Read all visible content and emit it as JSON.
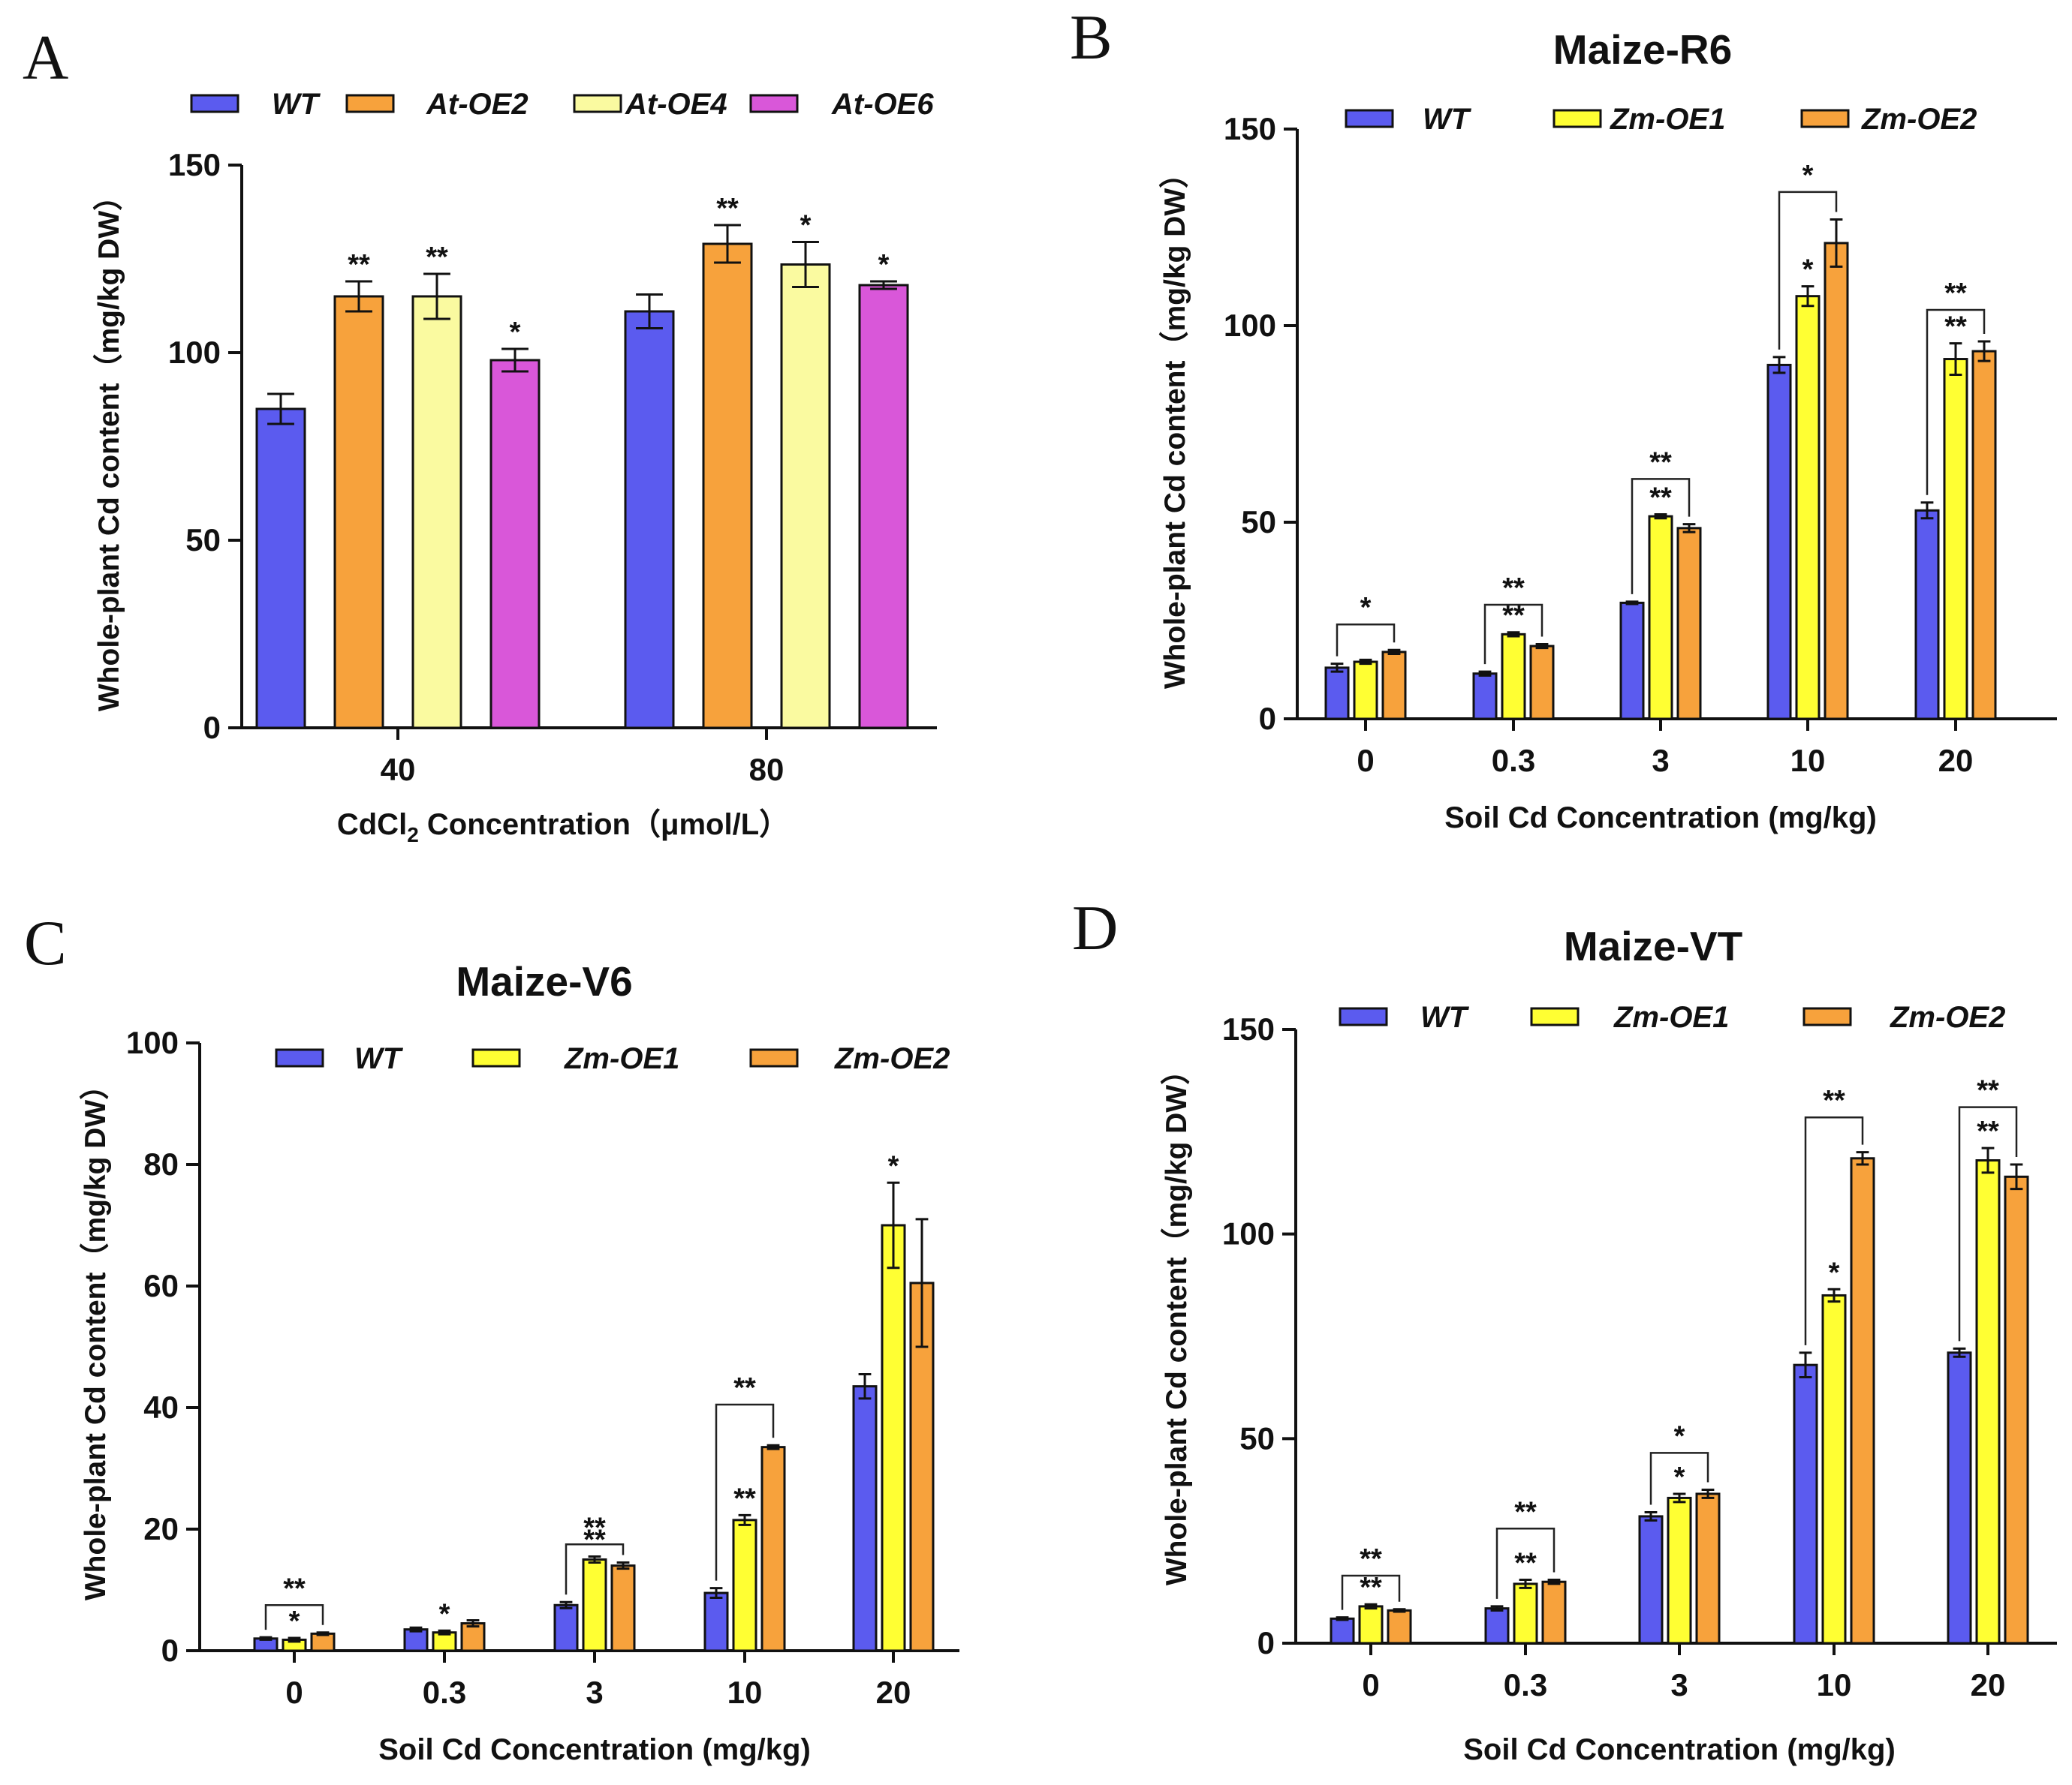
{
  "chart_data": [
    {
      "id": "A",
      "type": "bar",
      "panel_label": "A",
      "title": "",
      "xlabel_parts": [
        "CdCl",
        "2",
        " Concentration（μmol/L）"
      ],
      "ylabel": "Whole-plant Cd content（mg/kg DW）",
      "ylim": [
        0,
        150
      ],
      "yticks": [
        0,
        50,
        100,
        150
      ],
      "ytick_labels": [
        "0",
        "50",
        "100",
        "150"
      ],
      "categories": [
        "40",
        "80"
      ],
      "series": [
        {
          "name": "WT",
          "color": "#5b5bef",
          "values": [
            85,
            111
          ],
          "errors": [
            4,
            4.5
          ],
          "sig": [
            "",
            ""
          ]
        },
        {
          "name": "At-OE2",
          "color": "#f7a23c",
          "values": [
            115,
            129
          ],
          "errors": [
            4,
            5
          ],
          "sig": [
            "**",
            "**"
          ]
        },
        {
          "name": "At-OE4",
          "color": "#fafaa0",
          "values": [
            115,
            123.5
          ],
          "errors": [
            6,
            6
          ],
          "sig": [
            "**",
            "*"
          ]
        },
        {
          "name": "At-OE6",
          "color": "#d957d9",
          "values": [
            98,
            118
          ],
          "errors": [
            3,
            1
          ],
          "sig": [
            "*",
            "*"
          ]
        }
      ],
      "brackets": []
    },
    {
      "id": "B",
      "type": "bar",
      "panel_label": "B",
      "title": "Maize-R6",
      "xlabel_parts": [
        "Soil Cd Concentration (mg/kg)"
      ],
      "ylabel": "Whole-plant Cd content（mg/kg DW）",
      "ylim": [
        0,
        150
      ],
      "yticks": [
        0,
        50,
        100,
        150
      ],
      "ytick_labels": [
        "0",
        "50",
        "100",
        "150"
      ],
      "categories": [
        "0",
        "0.3",
        "3",
        "10",
        "20"
      ],
      "series": [
        {
          "name": "WT",
          "color": "#5b5bef",
          "values": [
            13,
            11.5,
            29.5,
            90,
            53
          ],
          "errors": [
            1,
            0.5,
            0.3,
            2,
            2
          ],
          "sig": [
            "",
            "",
            "",
            "",
            ""
          ]
        },
        {
          "name": "Zm-OE1",
          "color": "#ffff33",
          "values": [
            14.5,
            21.5,
            51.5,
            107.5,
            91.5
          ],
          "errors": [
            0.5,
            0.5,
            0.5,
            2.5,
            4
          ],
          "sig": [
            "",
            "**",
            "**",
            "*",
            "**"
          ]
        },
        {
          "name": "Zm-OE2",
          "color": "#f7a23c",
          "values": [
            17,
            18.5,
            48.5,
            121,
            93.5
          ],
          "errors": [
            0.5,
            0.5,
            1,
            6,
            2.5
          ],
          "sig": [
            "",
            "",
            "",
            "",
            ""
          ]
        }
      ],
      "brackets": [
        {
          "cat": 0,
          "y": 24,
          "label": "*"
        },
        {
          "cat": 1,
          "y": 29,
          "label": "**"
        },
        {
          "cat": 2,
          "y": 61,
          "label": "**"
        },
        {
          "cat": 3,
          "y": 134,
          "label": "*"
        },
        {
          "cat": 4,
          "y": 104,
          "label": "**"
        }
      ]
    },
    {
      "id": "C",
      "type": "bar",
      "panel_label": "C",
      "title": "Maize-V6",
      "xlabel_parts": [
        "Soil Cd Concentration (mg/kg)"
      ],
      "ylabel": "Whole-plant Cd content（mg/kg DW）",
      "ylim": [
        0,
        100
      ],
      "yticks": [
        0,
        20,
        40,
        60,
        80,
        100
      ],
      "ytick_labels": [
        "0",
        "20",
        "40",
        "60",
        "80",
        "100"
      ],
      "categories": [
        "0",
        "0.3",
        "3",
        "10",
        "20"
      ],
      "series": [
        {
          "name": "WT",
          "color": "#5b5bef",
          "values": [
            2,
            3.5,
            7.5,
            9.5,
            43.5
          ],
          "errors": [
            0.2,
            0.3,
            0.5,
            0.8,
            2
          ],
          "sig": [
            "",
            "",
            "",
            "",
            ""
          ]
        },
        {
          "name": "Zm-OE1",
          "color": "#ffff33",
          "values": [
            1.8,
            3,
            15,
            21.5,
            70
          ],
          "errors": [
            0.3,
            0.3,
            0.5,
            0.8,
            7
          ],
          "sig": [
            "*",
            "*",
            "**",
            "**",
            "*"
          ]
        },
        {
          "name": "Zm-OE2",
          "color": "#f7a23c",
          "values": [
            2.8,
            4.5,
            14,
            33.5,
            60.5
          ],
          "errors": [
            0.2,
            0.5,
            0.5,
            0.3,
            10.5
          ],
          "sig": [
            "",
            "",
            "",
            "",
            ""
          ]
        }
      ],
      "brackets": [
        {
          "cat": 0,
          "y": 7.5,
          "label": "**"
        },
        {
          "cat": 2,
          "y": 17.5,
          "label": "**"
        },
        {
          "cat": 3,
          "y": 40.5,
          "label": "**"
        }
      ]
    },
    {
      "id": "D",
      "type": "bar",
      "panel_label": "D",
      "title": "Maize-VT",
      "xlabel_parts": [
        "Soil Cd Concentration (mg/kg)"
      ],
      "ylabel": "Whole-plant Cd content（mg/kg DW）",
      "ylim": [
        0,
        150
      ],
      "yticks": [
        0,
        50,
        100,
        150
      ],
      "ytick_labels": [
        "0",
        "50",
        "100",
        "150"
      ],
      "categories": [
        "0",
        "0.3",
        "3",
        "10",
        "20"
      ],
      "series": [
        {
          "name": "WT",
          "color": "#5b5bef",
          "values": [
            6,
            8.5,
            31,
            68,
            71
          ],
          "errors": [
            0.3,
            0.5,
            1,
            3,
            1
          ],
          "sig": [
            "",
            "",
            "",
            "",
            ""
          ]
        },
        {
          "name": "Zm-OE1",
          "color": "#ffff33",
          "values": [
            9,
            14.5,
            35.5,
            85,
            118
          ],
          "errors": [
            0.5,
            1,
            1,
            1.5,
            3
          ],
          "sig": [
            "**",
            "**",
            "*",
            "*",
            "**"
          ]
        },
        {
          "name": "Zm-OE2",
          "color": "#f7a23c",
          "values": [
            8,
            15,
            36.5,
            118.5,
            114
          ],
          "errors": [
            0.3,
            0.5,
            1,
            1.5,
            3
          ],
          "sig": [
            "",
            "",
            "",
            "",
            ""
          ]
        }
      ],
      "brackets": [
        {
          "cat": 0,
          "y": 16.5,
          "label": "**"
        },
        {
          "cat": 1,
          "y": 28,
          "label": "**"
        },
        {
          "cat": 2,
          "y": 46.5,
          "label": "*"
        },
        {
          "cat": 3,
          "y": 128.5,
          "label": "**"
        },
        {
          "cat": 4,
          "y": 131,
          "label": "**"
        }
      ]
    }
  ]
}
